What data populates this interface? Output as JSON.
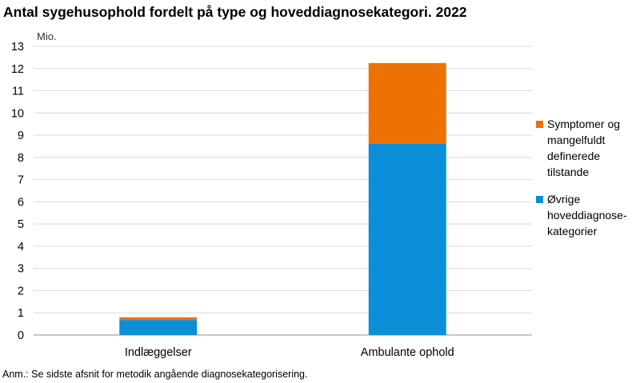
{
  "title": "Antal sygehusophold fordelt på type og hoveddiagnosekategori. 2022",
  "note": "Anm.: Se sidste afsnit for metodik angående diagnosekategorisering.",
  "chart_data": {
    "type": "bar",
    "stacked": true,
    "unit_label": "Mio.",
    "categories": [
      "Indlæggelser",
      "Ambulante ophold"
    ],
    "ylim": [
      0,
      13
    ],
    "yticks": [
      0,
      1,
      2,
      3,
      4,
      5,
      6,
      7,
      8,
      9,
      10,
      11,
      12,
      13
    ],
    "grid": true,
    "legend_position": "right",
    "series": [
      {
        "name_lines": [
          "Øvrige",
          "hoveddiagnose-",
          "kategorier"
        ],
        "color": "#0a8fd8",
        "values": [
          0.68,
          8.62
        ]
      },
      {
        "name_lines": [
          "Symptomer og",
          "mangelfuldt",
          "definerede",
          "tilstande"
        ],
        "color": "#ed7203",
        "values": [
          0.12,
          3.63
        ]
      }
    ],
    "legend_order": [
      1,
      0
    ]
  }
}
